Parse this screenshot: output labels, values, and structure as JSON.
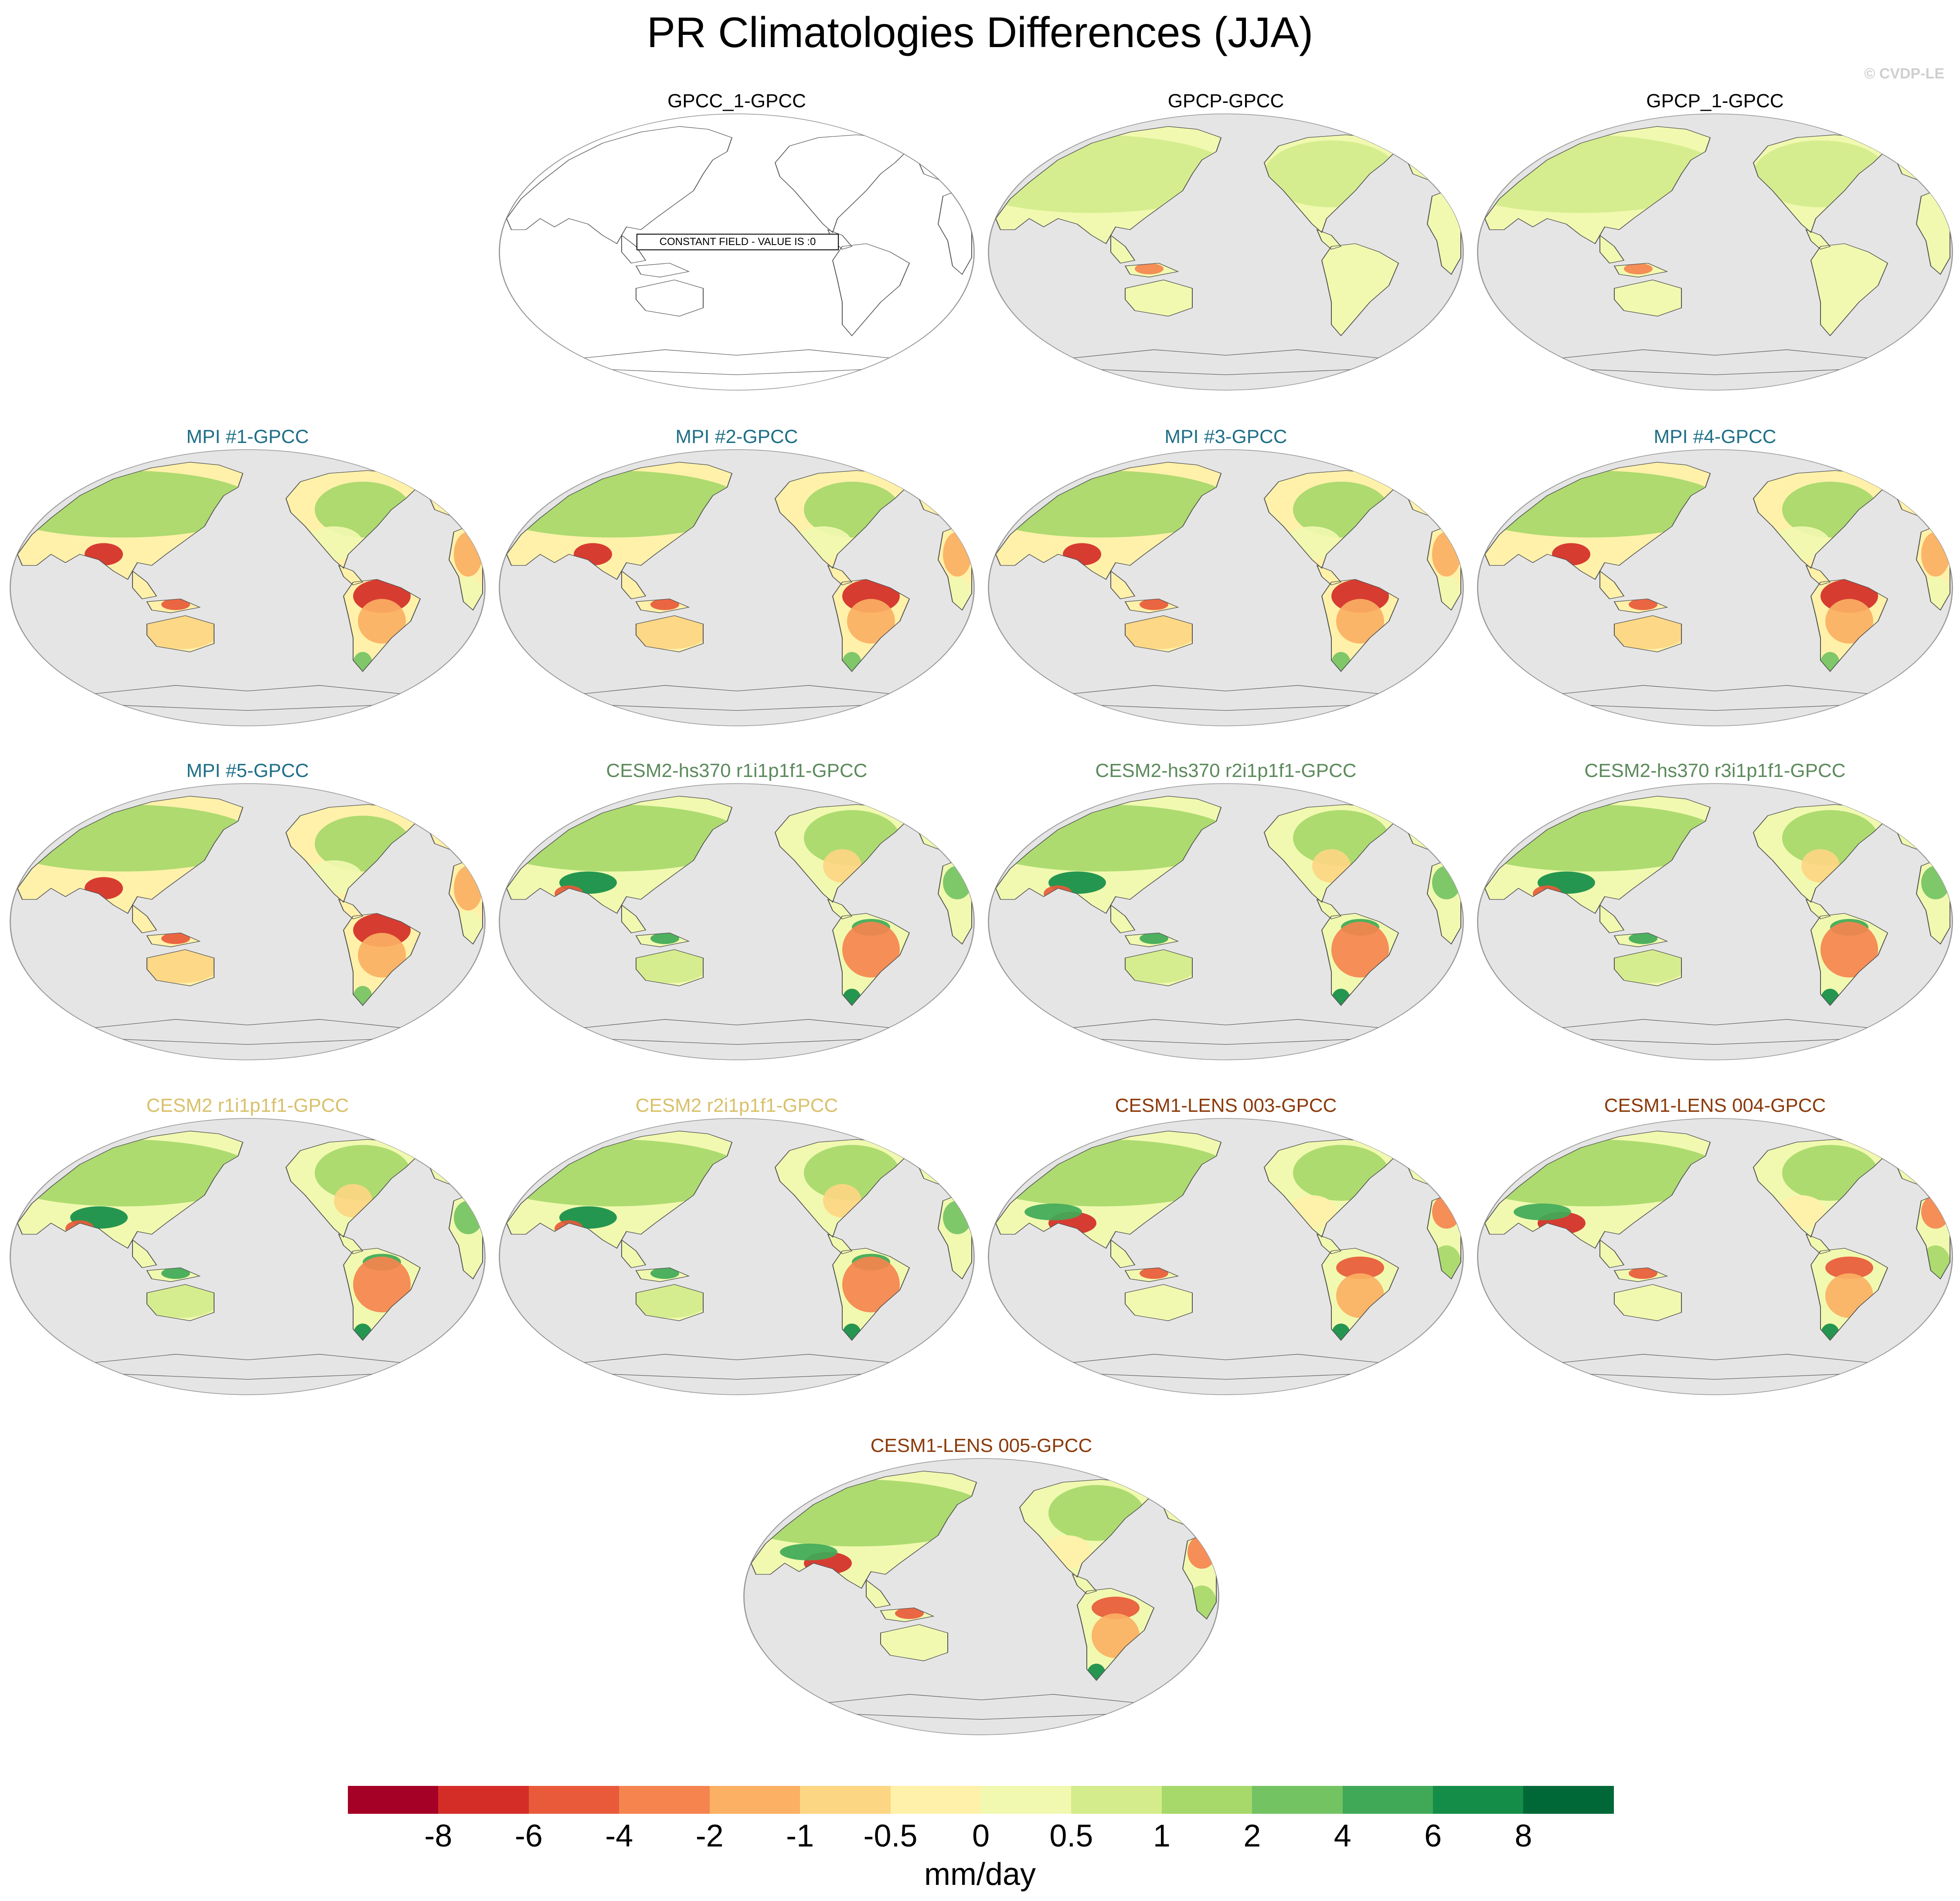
{
  "title": "PR Climatologies Differences (JJA)",
  "credit": "© CVDP-LE",
  "colors": {
    "land_background": "#e5e5e5",
    "coastline": "#555555",
    "empty_panel_background": "#ffffff",
    "title_default": "#000000",
    "title_mpi": "#1f6f88",
    "title_cesm2_hs370": "#5c8a5c",
    "title_cesm2": "#d9c06a",
    "title_cesm1_lens": "#8b3a0a"
  },
  "panels": [
    {
      "title": "GPCC_1-GPCC",
      "title_color": "#000000",
      "style": "constant",
      "note": "CONSTANT FIELD - VALUE IS :0"
    },
    {
      "title": "GPCP-GPCC",
      "title_color": "#000000",
      "style": "obs"
    },
    {
      "title": "GPCP_1-GPCC",
      "title_color": "#000000",
      "style": "obs"
    },
    {
      "title": "MPI #1-GPCC",
      "title_color": "#1f6f88",
      "style": "mpi"
    },
    {
      "title": "MPI #2-GPCC",
      "title_color": "#1f6f88",
      "style": "mpi"
    },
    {
      "title": "MPI #3-GPCC",
      "title_color": "#1f6f88",
      "style": "mpi"
    },
    {
      "title": "MPI #4-GPCC",
      "title_color": "#1f6f88",
      "style": "mpi"
    },
    {
      "title": "MPI #5-GPCC",
      "title_color": "#1f6f88",
      "style": "mpi"
    },
    {
      "title": "CESM2-hs370 r1i1p1f1-GPCC",
      "title_color": "#5c8a5c",
      "style": "cesm"
    },
    {
      "title": "CESM2-hs370 r2i1p1f1-GPCC",
      "title_color": "#5c8a5c",
      "style": "cesm"
    },
    {
      "title": "CESM2-hs370 r3i1p1f1-GPCC",
      "title_color": "#5c8a5c",
      "style": "cesm"
    },
    {
      "title": "CESM2 r1i1p1f1-GPCC",
      "title_color": "#d9c06a",
      "style": "cesm"
    },
    {
      "title": "CESM2 r2i1p1f1-GPCC",
      "title_color": "#d9c06a",
      "style": "cesm"
    },
    {
      "title": "CESM1-LENS 003-GPCC",
      "title_color": "#8b3a0a",
      "style": "lens"
    },
    {
      "title": "CESM1-LENS 004-GPCC",
      "title_color": "#8b3a0a",
      "style": "lens"
    },
    {
      "title": "CESM1-LENS 005-GPCC",
      "title_color": "#8b3a0a",
      "style": "lens"
    }
  ],
  "colorbar": {
    "unit_label": "mm/day",
    "tick_labels": [
      "-8",
      "-6",
      "-4",
      "-2",
      "-1",
      "-0.5",
      "0",
      "0.5",
      "1",
      "2",
      "4",
      "6",
      "8"
    ],
    "colors": [
      "#a50026",
      "#d42d27",
      "#e85a3a",
      "#f5844f",
      "#fbb063",
      "#fdd683",
      "#fff1aa",
      "#f1f9b0",
      "#d4ec8c",
      "#a7d86a",
      "#74c363",
      "#3fa957",
      "#148d48",
      "#006837"
    ]
  }
}
